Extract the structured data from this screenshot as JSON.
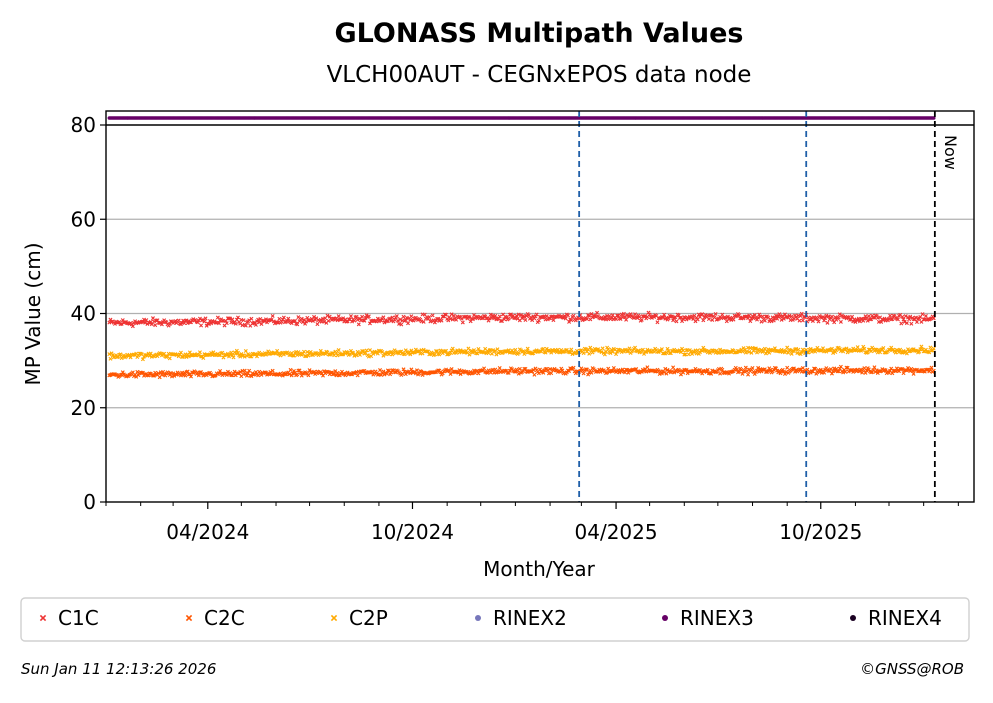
{
  "chart_data": {
    "type": "scatter",
    "title": "GLONASS Multipath Values",
    "subtitle": "VLCH00AUT - CEGNxEPOS data node",
    "xlabel": "Month/Year",
    "ylabel": "MP Value (cm)",
    "xlim": [
      "2024-01-01",
      "2026-02-15"
    ],
    "ylim": [
      0,
      82
    ],
    "yticks": [
      0,
      20,
      40,
      60,
      80
    ],
    "xticks": [
      {
        "date": "2024-04-01",
        "label": "04/2024"
      },
      {
        "date": "2024-10-01",
        "label": "10/2024"
      },
      {
        "date": "2025-04-01",
        "label": "04/2025"
      },
      {
        "date": "2025-10-01",
        "label": "10/2025"
      }
    ],
    "grid": "horizontal",
    "legend_position": "bottom",
    "series": [
      {
        "name": "C1C",
        "color": "#ee3333",
        "marker": "x",
        "start": "2024-01-04",
        "end": "2026-01-10",
        "trend": [
          [
            "2024-01-04",
            38.0
          ],
          [
            "2024-06-01",
            38.4
          ],
          [
            "2025-01-01",
            39.2
          ],
          [
            "2025-07-01",
            39.2
          ],
          [
            "2026-01-10",
            38.8
          ]
        ],
        "spread": 0.9
      },
      {
        "name": "C2C",
        "color": "#ff5500",
        "marker": "x",
        "start": "2024-01-04",
        "end": "2026-01-10",
        "trend": [
          [
            "2024-01-04",
            27.0
          ],
          [
            "2024-06-01",
            27.2
          ],
          [
            "2025-01-01",
            27.8
          ],
          [
            "2025-07-01",
            27.8
          ],
          [
            "2026-01-10",
            28.0
          ]
        ],
        "spread": 0.7
      },
      {
        "name": "C2P",
        "color": "#ffaa00",
        "marker": "x",
        "start": "2024-01-04",
        "end": "2026-01-10",
        "trend": [
          [
            "2024-01-04",
            31.0
          ],
          [
            "2024-06-01",
            31.4
          ],
          [
            "2025-01-01",
            32.0
          ],
          [
            "2025-07-01",
            32.0
          ],
          [
            "2026-01-10",
            32.3
          ]
        ],
        "spread": 0.7
      },
      {
        "name": "RINEX2",
        "color": "#7777bb",
        "marker": "o"
      },
      {
        "name": "RINEX3",
        "color": "#660066",
        "marker": "o",
        "start": "2024-01-04",
        "end": "2026-01-10",
        "y": 81.2
      },
      {
        "name": "RINEX4",
        "color": "#1a0022",
        "marker": "o"
      }
    ],
    "vlines": [
      {
        "date": "2025-02-27",
        "color": "#1f5fa8",
        "style": "dashed"
      },
      {
        "date": "2025-09-18",
        "color": "#1f5fa8",
        "style": "dashed"
      },
      {
        "date": "2026-01-11",
        "color": "#000000",
        "style": "dashed",
        "label": "Now"
      }
    ]
  },
  "footer": {
    "timestamp": "Sun Jan 11 12:13:26 2026",
    "copyright": "©GNSS@ROB"
  }
}
